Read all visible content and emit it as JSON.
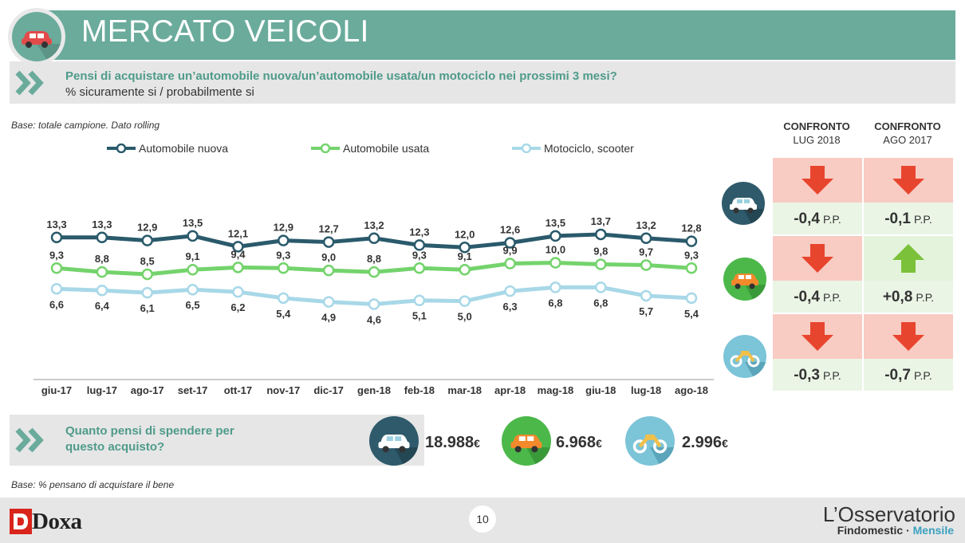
{
  "header": {
    "title": "MERCATO VEICOLI"
  },
  "question": {
    "text": "Pensi di acquistare un’automobile nuova/un’automobile usata/un motociclo nei prossimi 3 mesi?",
    "subtitle": "% sicuramente si / probabilmente si"
  },
  "base_note_1": "Base: totale campione. Dato rolling",
  "base_note_2": "Base: % pensano di acquistare il bene",
  "colors": {
    "nuova": "#2a5a6b",
    "usata": "#74d36c",
    "moto": "#a8d8e8",
    "accent": "#6aab9c",
    "down_bg": "#f8cbc3",
    "up_bg": "#e4f3dc",
    "down": "#e8452e",
    "up": "#7cc13a"
  },
  "chart_data": {
    "type": "line",
    "categories": [
      "giu-17",
      "lug-17",
      "ago-17",
      "set-17",
      "ott-17",
      "nov-17",
      "dic-17",
      "gen-18",
      "feb-18",
      "mar-18",
      "apr-18",
      "mag-18",
      "giu-18",
      "lug-18",
      "ago-18"
    ],
    "series": [
      {
        "name": "Automobile nuova",
        "values": [
          13.3,
          13.3,
          12.9,
          13.5,
          12.1,
          12.9,
          12.7,
          13.2,
          12.3,
          12.0,
          12.6,
          13.5,
          13.7,
          13.2,
          12.8
        ],
        "labels": [
          "13,3",
          "13,3",
          "12,9",
          "13,5",
          "12,1",
          "12,9",
          "12,7",
          "13,2",
          "12,3",
          "12,0",
          "12,6",
          "13,5",
          "13,7",
          "13,2",
          "12,8"
        ]
      },
      {
        "name": "Automobile usata",
        "values": [
          9.3,
          8.8,
          8.5,
          9.1,
          9.4,
          9.3,
          9.0,
          8.8,
          9.3,
          9.1,
          9.9,
          10.0,
          9.8,
          9.7,
          9.3
        ],
        "labels": [
          "9,3",
          "8,8",
          "8,5",
          "9,1",
          "9,4",
          "9,3",
          "9,0",
          "8,8",
          "9,3",
          "9,1",
          "9,9",
          "10,0",
          "9,8",
          "9,7",
          "9,3"
        ]
      },
      {
        "name": "Motociclo, scooter",
        "values": [
          6.6,
          6.4,
          6.1,
          6.5,
          6.2,
          5.4,
          4.9,
          4.6,
          5.1,
          5.0,
          6.3,
          6.8,
          6.8,
          5.7,
          5.4
        ],
        "labels": [
          "6,6",
          "6,4",
          "6,1",
          "6,5",
          "6,2",
          "5,4",
          "4,9",
          "4,6",
          "5,1",
          "5,0",
          "6,3",
          "6,8",
          "6,8",
          "5,7",
          "5,4"
        ]
      }
    ],
    "legend": "top",
    "grid": false
  },
  "comparison": {
    "headers": [
      {
        "title": "CONFRONTO",
        "sub": "LUG 2018"
      },
      {
        "title": "CONFRONTO",
        "sub": "AGO 2017"
      }
    ],
    "unit": "P.P.",
    "rows": [
      {
        "vehicle": "car-white-icon",
        "cells": [
          {
            "value": "-0,4",
            "direction": "down"
          },
          {
            "value": "-0,1",
            "direction": "down"
          }
        ]
      },
      {
        "vehicle": "car-orange-icon",
        "cells": [
          {
            "value": "-0,4",
            "direction": "down"
          },
          {
            "value": "+0,8",
            "direction": "up"
          }
        ]
      },
      {
        "vehicle": "motorcycle-icon",
        "cells": [
          {
            "value": "-0,3",
            "direction": "down"
          },
          {
            "value": "-0,7",
            "direction": "down"
          }
        ]
      }
    ]
  },
  "spending": {
    "question": "Quanto pensi di spendere per questo acquisto?",
    "items": [
      {
        "icon": "car-white-icon",
        "value": "18.988",
        "currency": "€"
      },
      {
        "icon": "car-orange-icon",
        "value": "6.968",
        "currency": "€"
      },
      {
        "icon": "motorcycle-icon",
        "value": "2.996",
        "currency": "€"
      }
    ]
  },
  "footer": {
    "page": "10",
    "brand": "Doxa",
    "observatory": "L’Osservatorio",
    "observatory_sub_a": "Findomestic · ",
    "observatory_sub_b": "Mensile"
  }
}
